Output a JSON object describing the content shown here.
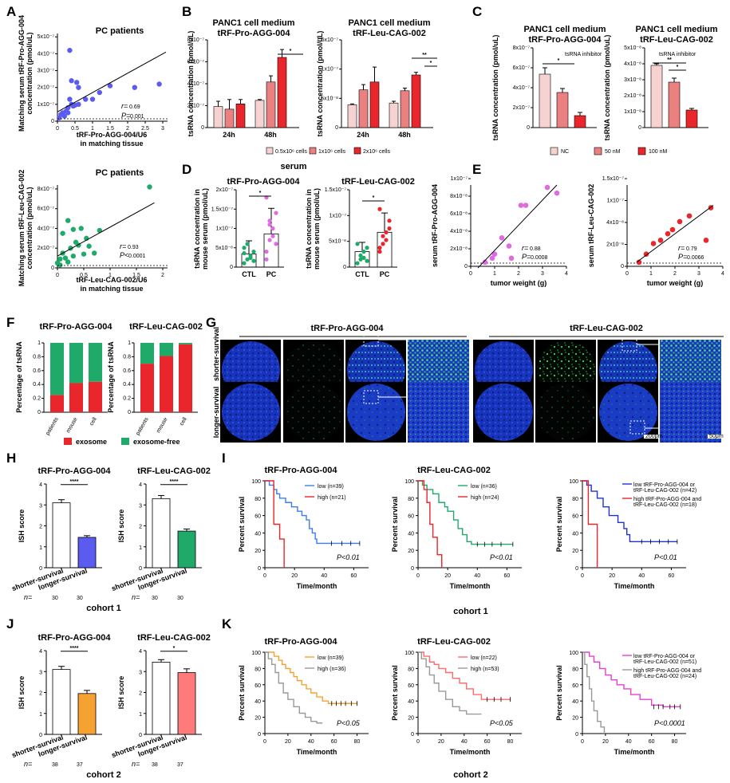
{
  "panel_letters": [
    "A",
    "B",
    "C",
    "D",
    "E",
    "F",
    "G",
    "H",
    "I",
    "J",
    "K"
  ],
  "colors": {
    "blue": "#5b5bef",
    "green": "#1faa6a",
    "red": "#e8262b",
    "pink": "#e06be0",
    "orange": "#f5a233",
    "gray": "#a9a9a9",
    "light_pink": "#f6d3d1",
    "mid_pink": "#ea8180",
    "salmon": "#ff7a7a",
    "dark_blue": "#1d33d6"
  },
  "A": {
    "title_top": "PC patients",
    "ylabel_top": [
      "Matching serum tRF-Pro-AGG-004",
      "concentration (pmol/uL)"
    ],
    "xlabel_top": [
      "tRF-Pro-AGG-004/U6",
      "in matching tissue"
    ],
    "stats_top": {
      "r": "0.69",
      "p": "0.001"
    },
    "title_bottom": "PC patients",
    "ylabel_bottom": [
      "Matching serum tRF-Leu-CAG-002",
      "concentration (pmol/uL)"
    ],
    "xlabel_bottom": [
      "tRF-Leu-CAG-002/U6",
      "in matching tissue"
    ],
    "stats_bottom": {
      "r": "0.93",
      "p": "0.0001"
    }
  },
  "B": {
    "titles": [
      [
        "PANC1 cell medium",
        "tRF-Pro-AGG-004"
      ],
      [
        "PANC1 cell medium",
        "tRF-Leu-CAG-002"
      ]
    ],
    "ylabel": "tsRNA concentration (pmol/uL)",
    "legend": [
      "0.5x10⁶ cells",
      "1x10⁶ cells",
      "2x10⁶ cells"
    ],
    "stars": [
      "*",
      "**",
      "*"
    ]
  },
  "C": {
    "titles": [
      [
        "PANC1 cell medium",
        "tRF-Pro-AGG-004"
      ],
      [
        "PANC1 cell medium",
        "tRF-Leu-CAG-002"
      ]
    ],
    "ylabel": "tsRNA concentration (pmol/uL)",
    "inhibitor_label": "tsRNA inhibitor",
    "legend": [
      "NC",
      "50 nM",
      "100 nM"
    ],
    "stars": [
      "*",
      "**",
      "*"
    ]
  },
  "D": {
    "serum_label": "serum",
    "titles": [
      "tRF-Pro-AGG-004",
      "tRF-Leu-CAG-002"
    ],
    "ylabel": [
      "tsRNA concentration in",
      "mouse serum (pmol/uL)"
    ],
    "ylabel2": [
      "tsRNA concentration  in",
      "mouse serum (pmol/uL)"
    ],
    "groups": [
      "CTL",
      "PC"
    ],
    "stars": [
      "*",
      "*"
    ]
  },
  "E": {
    "ylabels": [
      "serum tRF-Pro-AGG-004",
      "serum tRF-Leu-CAG-002"
    ],
    "xlabel": "tumor weight (g)",
    "stats": [
      {
        "r": "0.88",
        "p": "0.0008"
      },
      {
        "r": "0.79",
        "p": "0.0066"
      }
    ]
  },
  "F": {
    "titles": [
      "tRF-Pro-AGG-004",
      "tRF-Leu-CAG-002"
    ],
    "ylabel": "Percentage of tsRNA",
    "cats": [
      "patients",
      "mouse",
      "cell"
    ],
    "legend": [
      "exosome",
      "exosome-free"
    ],
    "exosome_fraction_left": [
      0.25,
      0.42,
      0.44
    ],
    "exosome_fraction_right": [
      0.7,
      0.81,
      0.98
    ]
  },
  "G": {
    "group_titles": [
      "tRF-Pro-AGG-004",
      "tRF-Leu-CAG-002"
    ],
    "row_labels": [
      "shorter-survival",
      "longer-survival"
    ],
    "scale_label": "200μm",
    "scale_label2": "50μm"
  },
  "H": {
    "titles": [
      "tRF-Pro-AGG-004",
      "tRF-Leu-CAG-002"
    ],
    "ylabel": "ISH score",
    "cats": [
      "shorter-survival",
      "longer-survival"
    ],
    "values_left": [
      3.1,
      1.45
    ],
    "values_right": [
      3.3,
      1.75
    ],
    "n_label": "n=",
    "n": [
      "30",
      "30"
    ],
    "stars": [
      "****",
      "****"
    ],
    "cohort": "cohort 1"
  },
  "I": {
    "titles": [
      "tRF-Pro-AGG-004",
      "tRF-Leu-CAG-002"
    ],
    "ylabel": "Percent survival",
    "xlabel": "Time/month",
    "legend1": [
      "low  (n=39)",
      "high (n=21)"
    ],
    "legend2": [
      "low  (n=36)",
      "high (n=24)"
    ],
    "legend3": [
      "low tRF-Pro-AGG-004 or",
      "tRF-Leu-CAG-002 (n=42)",
      "high tRF-Pro-AGG-004 and",
      "tRF-Leu-CAG-002  (n=18)"
    ],
    "pvals": [
      "P<0.01",
      "P<0.01",
      "P<0.01"
    ],
    "cohort": "cohort 1"
  },
  "J": {
    "titles": [
      "tRF-Pro-AGG-004",
      "tRF-Leu-CAG-002"
    ],
    "ylabel": "ISH score",
    "cats": [
      "shorter-survival",
      "longer-survival"
    ],
    "values_left": [
      3.1,
      1.95
    ],
    "values_right": [
      3.45,
      2.95
    ],
    "n_label": "n=",
    "n": [
      "38",
      "37"
    ],
    "stars": [
      "****",
      "*"
    ],
    "cohort": "cohort 2"
  },
  "K": {
    "titles": [
      "tRF-Pro-AGG-004",
      "tRF-Leu-CAG-002"
    ],
    "ylabel": "Percent survival",
    "xlabel": "Time/month",
    "legend1": [
      "low  (n=39)",
      "high (n=36)"
    ],
    "legend2": [
      "low  (n=22)",
      "high (n=53)"
    ],
    "legend3": [
      "low tRF-Pro-AGG-004 or",
      "tRF-Leu-CAG-002 (n=51)",
      "high tRF-Pro-AGG-004 and",
      "tRF-Leu-CAG-002  (n=24)"
    ],
    "pvals": [
      "P<0.05",
      "P<0.05",
      "P<0.0001"
    ],
    "cohort": "cohort 2"
  }
}
